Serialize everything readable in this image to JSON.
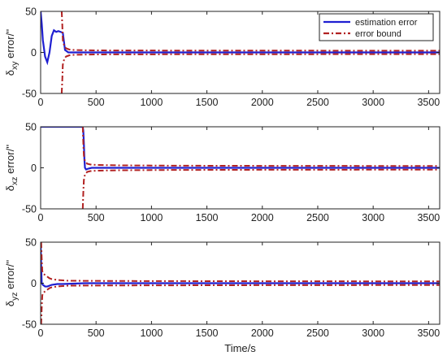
{
  "chart_data": [
    {
      "type": "line",
      "ylabel_main": "δ",
      "ylabel_sub": "xy",
      "ylabel_suffix": " error/''",
      "xlabel": "",
      "xlim": [
        0,
        3600
      ],
      "ylim": [
        -50,
        50
      ],
      "x_ticks": [
        0,
        500,
        1000,
        1500,
        2000,
        2500,
        3000,
        3500
      ],
      "y_ticks": [
        50,
        0,
        -50
      ],
      "grid": false,
      "legend": "top-right",
      "series": [
        {
          "name": "estimation error",
          "color": "#1f1fd1",
          "style": "solid",
          "x": [
            0,
            10,
            20,
            40,
            60,
            80,
            100,
            120,
            140,
            160,
            180,
            200,
            220,
            250,
            300,
            400,
            800,
            1600,
            2400,
            3600
          ],
          "y": [
            50,
            35,
            15,
            -5,
            -12,
            0,
            20,
            27,
            25,
            26,
            25,
            24,
            3,
            0,
            0,
            0,
            0,
            0,
            0,
            0
          ]
        },
        {
          "name": "error bound",
          "color": "#b22222",
          "style": "dashdot",
          "upper": {
            "x": [
              190,
              195,
              200,
              215,
              230,
              260,
              300,
              400,
              600,
              1000,
              2000,
              3600
            ],
            "y": [
              50,
              35,
              15,
              7,
              5,
              3.5,
              3,
              2.6,
              2.4,
              2.3,
              2.2,
              2.1
            ]
          },
          "lower": {
            "x": [
              190,
              195,
              200,
              215,
              230,
              260,
              300,
              400,
              600,
              1000,
              2000,
              3600
            ],
            "y": [
              -50,
              -35,
              -15,
              -7,
              -5,
              -3.5,
              -3,
              -2.6,
              -2.4,
              -2.3,
              -2.2,
              -2.1
            ]
          }
        }
      ]
    },
    {
      "type": "line",
      "ylabel_main": "δ",
      "ylabel_sub": "xz",
      "ylabel_suffix": " error/''",
      "xlabel": "",
      "xlim": [
        0,
        3600
      ],
      "ylim": [
        -50,
        50
      ],
      "x_ticks": [
        0,
        500,
        1000,
        1500,
        2000,
        2500,
        3000,
        3500
      ],
      "y_ticks": [
        50,
        0,
        -50
      ],
      "grid": false,
      "series": [
        {
          "name": "estimation error",
          "color": "#1f1fd1",
          "style": "solid",
          "x": [
            0,
            100,
            380,
            385,
            390,
            395,
            400,
            410,
            430,
            460,
            600,
            1200,
            3600
          ],
          "y": [
            50,
            50,
            50,
            45,
            30,
            10,
            0,
            -2,
            -1,
            0,
            0,
            0,
            0
          ]
        },
        {
          "name": "error bound",
          "color": "#b22222",
          "style": "dashdot",
          "upper": {
            "x": [
              380,
              385,
              390,
              400,
              420,
              450,
              500,
              700,
              1200,
              2000,
              3600
            ],
            "y": [
              50,
              30,
              15,
              8,
              5,
              4,
              3.5,
              3,
              2.6,
              2.4,
              2.2
            ]
          },
          "lower": {
            "x": [
              380,
              385,
              390,
              400,
              420,
              450,
              500,
              700,
              1200,
              2000,
              3600
            ],
            "y": [
              -50,
              -30,
              -15,
              -8,
              -5,
              -4,
              -3.5,
              -3,
              -2.6,
              -2.4,
              -2.2
            ]
          }
        }
      ]
    },
    {
      "type": "line",
      "ylabel_main": "δ",
      "ylabel_sub": "yz",
      "ylabel_suffix": " error/''",
      "xlabel": "Time/s",
      "xlim": [
        0,
        3600
      ],
      "ylim": [
        -50,
        50
      ],
      "x_ticks": [
        0,
        500,
        1000,
        1500,
        2000,
        2500,
        3000,
        3500
      ],
      "y_ticks": [
        50,
        0,
        -50
      ],
      "grid": false,
      "series": [
        {
          "name": "estimation error",
          "color": "#1f1fd1",
          "style": "solid",
          "x": [
            0,
            5,
            10,
            20,
            40,
            60,
            100,
            150,
            200,
            400,
            1000,
            3600
          ],
          "y": [
            50,
            20,
            0,
            -2,
            -4,
            -4,
            -2,
            -1,
            -1,
            0,
            0,
            0
          ]
        },
        {
          "name": "error bound",
          "color": "#b22222",
          "style": "dashdot",
          "upper": {
            "x": [
              5,
              10,
              15,
              20,
              40,
              60,
              80,
              100,
              150,
              250,
              500,
              1000,
              2000,
              3600
            ],
            "y": [
              50,
              30,
              15,
              12,
              10,
              8,
              6,
              5,
              4,
              3,
              2.8,
              2.6,
              2.4,
              2.2
            ]
          },
          "lower": {
            "x": [
              5,
              10,
              15,
              20,
              40,
              60,
              80,
              100,
              150,
              250,
              500,
              1000,
              2000,
              3600
            ],
            "y": [
              -50,
              -30,
              -15,
              -12,
              -10,
              -8,
              -6,
              -5,
              -4,
              -3,
              -2.8,
              -2.6,
              -2.4,
              -2.2
            ]
          }
        }
      ]
    }
  ]
}
